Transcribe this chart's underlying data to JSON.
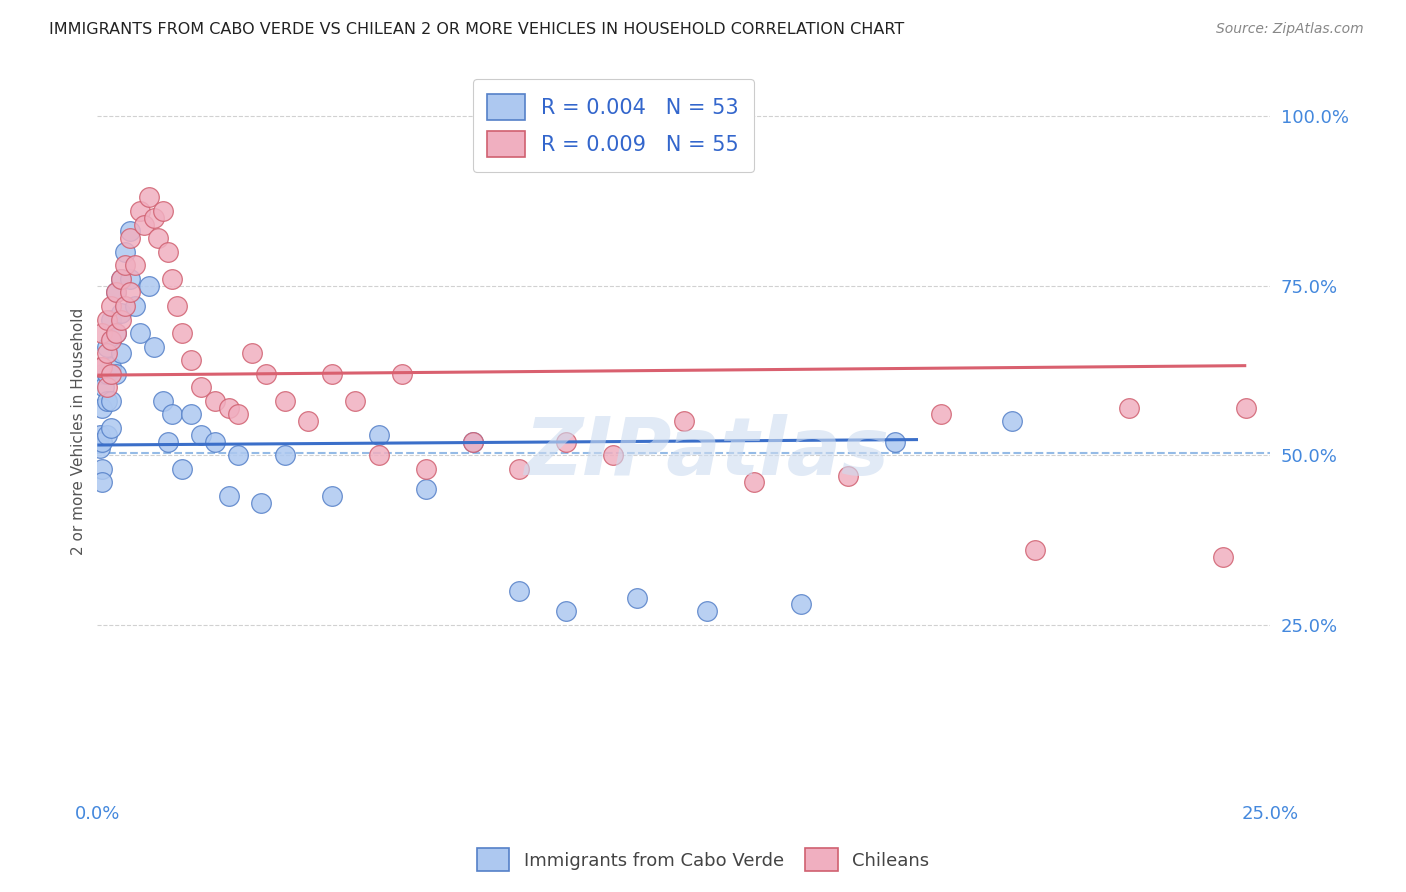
{
  "title": "IMMIGRANTS FROM CABO VERDE VS CHILEAN 2 OR MORE VEHICLES IN HOUSEHOLD CORRELATION CHART",
  "source": "Source: ZipAtlas.com",
  "ylabel": "2 or more Vehicles in Household",
  "legend_label1": "Immigrants from Cabo Verde",
  "legend_label2": "Chileans",
  "R1": "0.004",
  "N1": "53",
  "R2": "0.009",
  "N2": "55",
  "color_blue": "#adc8f0",
  "color_pink": "#f0afc0",
  "edge_blue": "#5580c8",
  "edge_pink": "#d06070",
  "line_blue": "#3b6fc9",
  "line_pink": "#d9606f",
  "dash_color": "#7baae0",
  "grid_color": "#cccccc",
  "title_color": "#222222",
  "source_color": "#888888",
  "tick_color": "#4488dd",
  "ylabel_color": "#555555",
  "watermark_color": "#cddcf0",
  "x_min": 0.0,
  "x_max": 0.25,
  "y_min": 0.0,
  "y_max": 1.07,
  "y_tick_vals": [
    1.0,
    0.75,
    0.5,
    0.25
  ],
  "y_tick_labels": [
    "100.0%",
    "75.0%",
    "50.0%",
    "25.0%"
  ],
  "x_tick_vals": [
    0.0,
    0.25
  ],
  "x_tick_labels": [
    "0.0%",
    "25.0%"
  ],
  "cabo_verde_x": [
    0.0005,
    0.0005,
    0.001,
    0.001,
    0.001,
    0.001,
    0.001,
    0.0015,
    0.002,
    0.002,
    0.002,
    0.002,
    0.003,
    0.003,
    0.003,
    0.003,
    0.003,
    0.004,
    0.004,
    0.004,
    0.005,
    0.005,
    0.005,
    0.006,
    0.007,
    0.007,
    0.008,
    0.009,
    0.011,
    0.012,
    0.014,
    0.015,
    0.016,
    0.018,
    0.02,
    0.022,
    0.025,
    0.028,
    0.03,
    0.035,
    0.04,
    0.05,
    0.06,
    0.07,
    0.08,
    0.09,
    0.1,
    0.115,
    0.13,
    0.15,
    0.17,
    0.195
  ],
  "cabo_verde_y": [
    0.53,
    0.51,
    0.62,
    0.57,
    0.52,
    0.48,
    0.46,
    0.6,
    0.66,
    0.62,
    0.58,
    0.53,
    0.7,
    0.67,
    0.63,
    0.58,
    0.54,
    0.74,
    0.68,
    0.62,
    0.76,
    0.71,
    0.65,
    0.8,
    0.83,
    0.76,
    0.72,
    0.68,
    0.75,
    0.66,
    0.58,
    0.52,
    0.56,
    0.48,
    0.56,
    0.53,
    0.52,
    0.44,
    0.5,
    0.43,
    0.5,
    0.44,
    0.53,
    0.45,
    0.52,
    0.3,
    0.27,
    0.29,
    0.27,
    0.28,
    0.52,
    0.55
  ],
  "chilean_x": [
    0.0005,
    0.001,
    0.001,
    0.002,
    0.002,
    0.002,
    0.003,
    0.003,
    0.003,
    0.004,
    0.004,
    0.005,
    0.005,
    0.006,
    0.006,
    0.007,
    0.007,
    0.008,
    0.009,
    0.01,
    0.011,
    0.012,
    0.013,
    0.014,
    0.015,
    0.016,
    0.017,
    0.018,
    0.02,
    0.022,
    0.025,
    0.028,
    0.03,
    0.033,
    0.036,
    0.04,
    0.045,
    0.05,
    0.055,
    0.06,
    0.065,
    0.07,
    0.08,
    0.09,
    0.1,
    0.11,
    0.125,
    0.14,
    0.16,
    0.18,
    0.2,
    0.22,
    0.24,
    0.245
  ],
  "chilean_y": [
    0.63,
    0.68,
    0.63,
    0.7,
    0.65,
    0.6,
    0.72,
    0.67,
    0.62,
    0.74,
    0.68,
    0.76,
    0.7,
    0.78,
    0.72,
    0.82,
    0.74,
    0.78,
    0.86,
    0.84,
    0.88,
    0.85,
    0.82,
    0.86,
    0.8,
    0.76,
    0.72,
    0.68,
    0.64,
    0.6,
    0.58,
    0.57,
    0.56,
    0.65,
    0.62,
    0.58,
    0.55,
    0.62,
    0.58,
    0.5,
    0.62,
    0.48,
    0.52,
    0.48,
    0.52,
    0.5,
    0.55,
    0.46,
    0.47,
    0.56,
    0.36,
    0.57,
    0.35,
    0.57
  ],
  "blue_line_x": [
    0.0,
    0.175
  ],
  "blue_line_y": [
    0.515,
    0.523
  ],
  "pink_line_x": [
    0.0,
    0.245
  ],
  "pink_line_y": [
    0.618,
    0.632
  ],
  "dashed_line_y": 0.503
}
